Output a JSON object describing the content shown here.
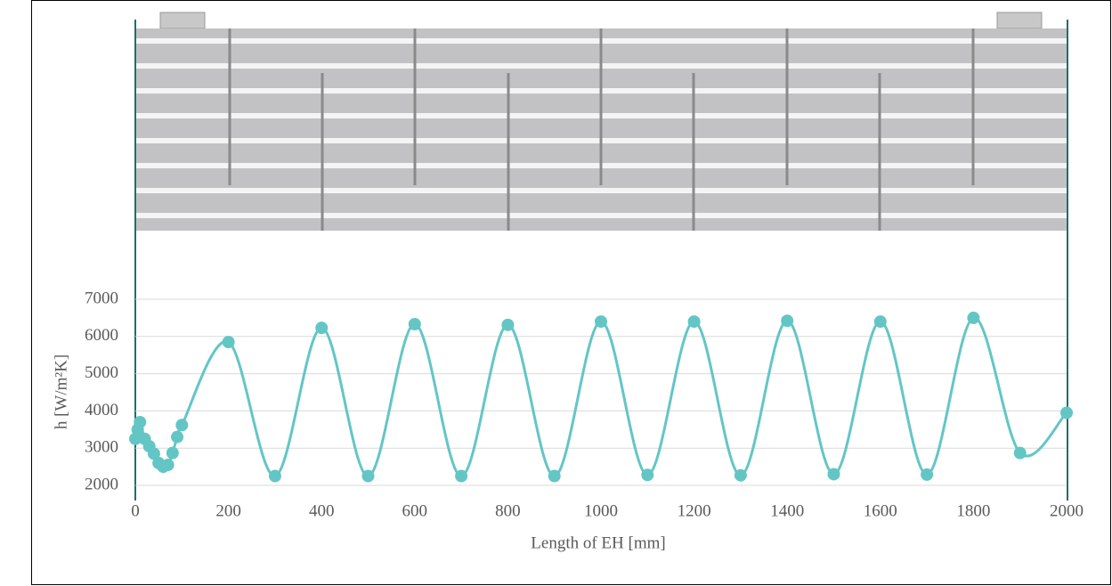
{
  "chart_data": {
    "type": "line",
    "x_label": "Length of EH [mm]",
    "y_label": "h [W/m²K]",
    "x": [
      0,
      5,
      10,
      20,
      30,
      40,
      50,
      60,
      70,
      80,
      90,
      100,
      200,
      300,
      400,
      500,
      600,
      700,
      800,
      900,
      1000,
      1100,
      1200,
      1300,
      1400,
      1500,
      1600,
      1700,
      1800,
      1900,
      2000
    ],
    "values": [
      3250,
      3500,
      3700,
      3250,
      3050,
      2850,
      2600,
      2500,
      2550,
      2870,
      3300,
      3620,
      5850,
      2250,
      6230,
      2250,
      6330,
      2250,
      6310,
      2250,
      6400,
      2280,
      6400,
      2270,
      6420,
      2300,
      6400,
      2290,
      6500,
      2870,
      3950
    ],
    "color": "#63c6c5",
    "xlim": [
      0,
      2000
    ],
    "xticks": [
      0,
      200,
      400,
      600,
      800,
      1000,
      1200,
      1400,
      1600,
      1800,
      2000
    ],
    "ylim": [
      2000,
      7000
    ],
    "yticks": [
      2000,
      3000,
      4000,
      5000,
      6000,
      7000
    ],
    "grid": true
  }
}
